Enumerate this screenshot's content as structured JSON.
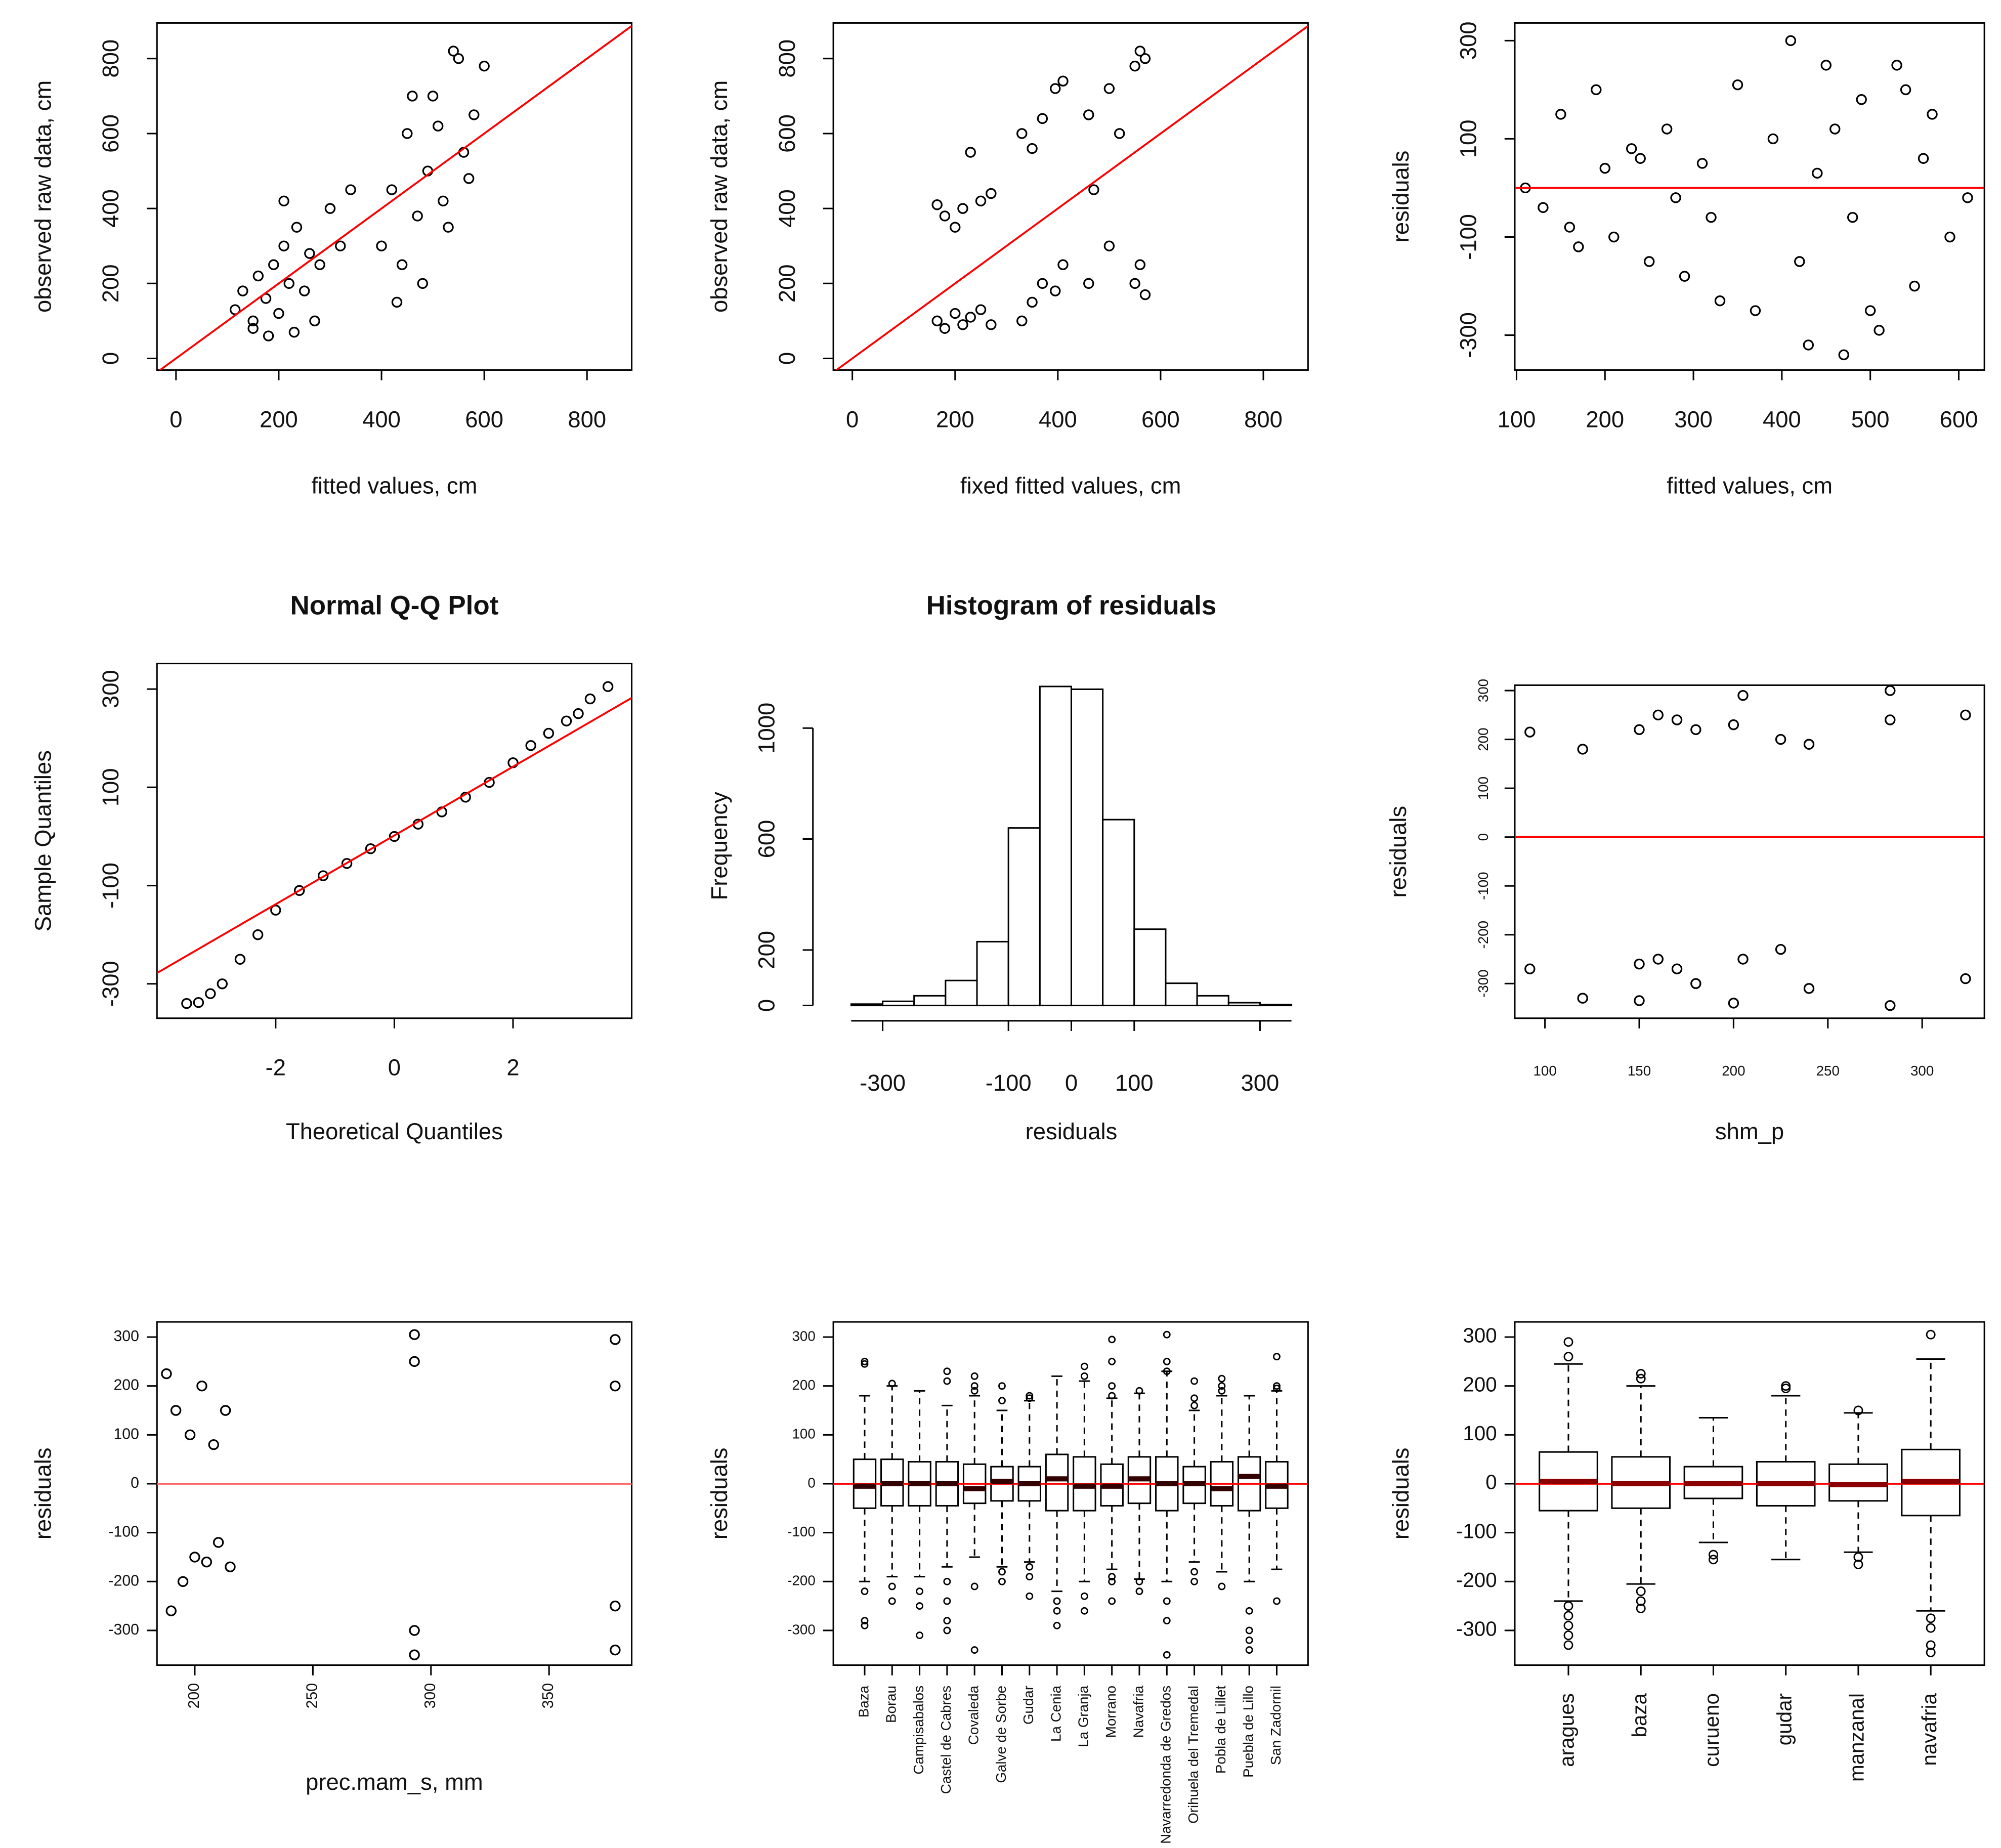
{
  "chart_data": [
    {
      "type": "scatter",
      "xlabel": "fitted values, cm",
      "ylabel": "observed raw data, cm",
      "color": "#000000",
      "x": [
        115,
        130,
        150,
        160,
        175,
        190,
        200,
        210,
        220,
        235,
        250,
        260,
        280,
        300,
        320,
        340,
        150,
        180,
        230,
        270,
        210,
        400,
        420,
        440,
        450,
        470,
        490,
        500,
        520,
        540,
        560,
        580,
        600,
        430,
        480,
        530,
        570,
        460,
        510,
        550
      ],
      "values": [
        130,
        180,
        100,
        220,
        160,
        250,
        120,
        300,
        200,
        350,
        180,
        280,
        250,
        400,
        300,
        450,
        80,
        60,
        70,
        100,
        420,
        300,
        450,
        250,
        600,
        380,
        500,
        700,
        420,
        820,
        550,
        650,
        780,
        150,
        200,
        350,
        480,
        700,
        620,
        800
      ],
      "xlim": [
        -37,
        887
      ],
      "ylim": [
        -31,
        895
      ],
      "xticks": [
        0,
        200,
        400,
        600,
        800
      ],
      "yticks": [
        0,
        200,
        400,
        600,
        800
      ],
      "reference_line": {
        "intercept": 0,
        "slope": 1,
        "color": "#ff0000"
      }
    },
    {
      "type": "scatter",
      "xlabel": "fixed fitted values, cm",
      "ylabel": "observed raw data, cm",
      "color": "#000000",
      "x": [
        165,
        165,
        180,
        180,
        200,
        200,
        215,
        215,
        230,
        230,
        250,
        250,
        270,
        270,
        330,
        330,
        350,
        350,
        370,
        370,
        395,
        395,
        410,
        410,
        460,
        460,
        470,
        500,
        500,
        520,
        550,
        550,
        560,
        560,
        570,
        570
      ],
      "values": [
        100,
        410,
        80,
        380,
        120,
        350,
        90,
        400,
        110,
        550,
        130,
        420,
        90,
        440,
        100,
        600,
        150,
        560,
        200,
        640,
        180,
        720,
        250,
        740,
        200,
        650,
        450,
        300,
        720,
        600,
        200,
        780,
        250,
        820,
        170,
        800
      ],
      "xlim": [
        -37,
        887
      ],
      "ylim": [
        -31,
        895
      ],
      "xticks": [
        0,
        200,
        400,
        600,
        800
      ],
      "yticks": [
        0,
        200,
        400,
        600,
        800
      ],
      "reference_line": {
        "intercept": 0,
        "slope": 1,
        "color": "#ff0000"
      }
    },
    {
      "type": "scatter",
      "xlabel": "fitted values, cm",
      "ylabel": "residuals",
      "color": "#000000",
      "x": [
        110,
        130,
        150,
        170,
        190,
        210,
        230,
        250,
        270,
        290,
        310,
        330,
        350,
        370,
        390,
        410,
        430,
        450,
        470,
        490,
        510,
        530,
        550,
        570,
        590,
        610,
        160,
        240,
        320,
        420,
        460,
        500,
        540,
        200,
        280,
        440,
        480,
        560
      ],
      "values": [
        0,
        -40,
        150,
        -120,
        200,
        -100,
        80,
        -150,
        120,
        -180,
        50,
        -230,
        210,
        -250,
        100,
        300,
        -320,
        250,
        -340,
        180,
        -290,
        250,
        -200,
        150,
        -100,
        -20,
        -80,
        60,
        -60,
        -150,
        120,
        -250,
        200,
        40,
        -20,
        30,
        -60,
        60
      ],
      "xlim": [
        98,
        629
      ],
      "ylim": [
        -371,
        336
      ],
      "xticks": [
        100,
        200,
        300,
        400,
        500,
        600
      ],
      "yticks": [
        -300,
        -100,
        100,
        300
      ],
      "reference_line": {
        "intercept": 0,
        "slope": 0,
        "color": "#ff0000"
      }
    },
    {
      "type": "scatter",
      "title": "Normal Q-Q Plot",
      "xlabel": "Theoretical Quantiles",
      "ylabel": "Sample Quantiles",
      "color": "#000000",
      "x": [
        -3.5,
        -3.3,
        -3.1,
        -2.9,
        -2.6,
        -2.3,
        -2.0,
        -1.6,
        -1.2,
        -0.8,
        -0.4,
        0,
        0.4,
        0.8,
        1.2,
        1.6,
        2.0,
        2.3,
        2.6,
        2.9,
        3.1,
        3.3,
        3.6
      ],
      "values": [
        -340,
        -338,
        -320,
        -300,
        -250,
        -200,
        -150,
        -110,
        -80,
        -55,
        -25,
        0,
        25,
        50,
        80,
        110,
        150,
        185,
        210,
        235,
        250,
        280,
        305
      ],
      "xlim": [
        -4,
        4
      ],
      "ylim": [
        -370,
        352
      ],
      "xticks": [
        -2,
        0,
        2
      ],
      "yticks": [
        -300,
        -100,
        100,
        300
      ],
      "reference_line": {
        "intercept": 2,
        "slope": 70,
        "color": "#ff0000"
      }
    },
    {
      "type": "histogram",
      "title": "Histogram of residuals",
      "xlabel": "residuals",
      "ylabel": "Frequency",
      "color": "#ffffff",
      "bins": [
        -350,
        -300,
        -250,
        -200,
        -150,
        -100,
        -50,
        0,
        50,
        100,
        150,
        200,
        250,
        300,
        350
      ],
      "values": [
        5,
        15,
        35,
        90,
        230,
        640,
        1150,
        1140,
        670,
        275,
        80,
        35,
        10,
        3
      ],
      "xlim": [
        -350,
        350
      ],
      "ylim": [
        0,
        1150
      ],
      "xticks": [
        -300,
        -100,
        0,
        100,
        300
      ],
      "yticks": [
        0,
        200,
        600,
        1000
      ]
    },
    {
      "type": "scatter",
      "xlabel": "shm_p",
      "ylabel": "residuals",
      "color": "#000000",
      "x": [
        92,
        92,
        120,
        120,
        150,
        150,
        150,
        160,
        160,
        170,
        170,
        180,
        180,
        200,
        200,
        205,
        205,
        225,
        225,
        240,
        240,
        283,
        283,
        283,
        323,
        323
      ],
      "values": [
        215,
        -270,
        180,
        -330,
        220,
        -335,
        -260,
        250,
        -250,
        240,
        -270,
        220,
        -300,
        230,
        -340,
        290,
        -250,
        200,
        -230,
        190,
        -310,
        300,
        -345,
        240,
        250,
        -290
      ],
      "xlim": [
        84,
        333
      ],
      "ylim": [
        -371,
        311
      ],
      "xticks": [
        100,
        150,
        200,
        250,
        300
      ],
      "yticks": [
        -300,
        -200,
        -100,
        0,
        100,
        200,
        300
      ],
      "reference_line": {
        "intercept": 0,
        "slope": 0,
        "color": "#ff0000"
      }
    },
    {
      "type": "scatter",
      "xlabel": "prec.mam_s, mm",
      "ylabel": "residuals",
      "color": "#000000",
      "x": [
        188,
        190,
        192,
        195,
        198,
        200,
        203,
        205,
        208,
        210,
        213,
        215,
        293,
        293,
        293,
        293,
        378,
        378,
        378,
        378
      ],
      "values": [
        225,
        -260,
        150,
        -200,
        100,
        -150,
        200,
        -160,
        80,
        -120,
        150,
        -170,
        305,
        -350,
        250,
        -300,
        295,
        -340,
        200,
        -250
      ],
      "xlim": [
        184,
        385
      ],
      "ylim": [
        -371,
        331
      ],
      "xticks": [
        200,
        250,
        300,
        350
      ],
      "yticks": [
        -300,
        -200,
        -100,
        0,
        100,
        200,
        300
      ],
      "reference_line": {
        "intercept": 0,
        "slope": 0,
        "color": "#ff6666"
      }
    },
    {
      "type": "box",
      "ylabel": "residuals",
      "color": "#000000",
      "median_color": "#330000",
      "categories": [
        "Baza",
        "Borau",
        "Campisabalos",
        "Castel de Cabres",
        "Covaleda",
        "Galve de Sorbe",
        "Gudar",
        "La Cenia",
        "La Granja",
        "Morrano",
        "Navafria",
        "Navarredonda de Gredos",
        "Orihuela del Tremedal",
        "Pobla de Lillet",
        "Puebla de Lillo",
        "San Zadornil"
      ],
      "q1": [
        -50,
        -45,
        -45,
        -45,
        -40,
        -35,
        -35,
        -55,
        -55,
        -45,
        -40,
        -55,
        -40,
        -45,
        -55,
        -50
      ],
      "median": [
        -5,
        0,
        0,
        0,
        -10,
        5,
        0,
        10,
        -5,
        -5,
        10,
        0,
        0,
        -10,
        15,
        -5
      ],
      "q3": [
        50,
        50,
        45,
        45,
        40,
        35,
        35,
        60,
        55,
        40,
        55,
        55,
        35,
        45,
        55,
        45
      ],
      "whisker_low": [
        -200,
        -190,
        -190,
        -170,
        -150,
        -170,
        -160,
        -220,
        -200,
        -175,
        -195,
        -200,
        -160,
        -180,
        -200,
        -175
      ],
      "whisker_high": [
        180,
        200,
        190,
        160,
        180,
        150,
        170,
        220,
        210,
        175,
        185,
        230,
        150,
        180,
        180,
        190
      ],
      "outliers": [
        [
          -220,
          -280,
          -290,
          250,
          245
        ],
        [
          -210,
          -240,
          205
        ],
        [
          -220,
          -250,
          -310
        ],
        [
          -200,
          -240,
          -280,
          -300,
          210,
          230
        ],
        [
          -210,
          -340,
          200,
          220,
          190
        ],
        [
          -180,
          -200,
          200,
          170
        ],
        [
          -170,
          -190,
          -230,
          175,
          180
        ],
        [
          -240,
          -260,
          -290
        ],
        [
          -230,
          -260,
          220,
          240
        ],
        [
          -190,
          -200,
          -240,
          180,
          200,
          250,
          295
        ],
        [
          -200,
          -220,
          190
        ],
        [
          -240,
          -280,
          -350,
          250,
          305,
          230
        ],
        [
          -180,
          -200,
          160,
          175,
          210
        ],
        [
          -210,
          190,
          200,
          215
        ],
        [
          -260,
          -300,
          -340,
          -320
        ],
        [
          -240,
          200,
          260,
          195
        ]
      ],
      "ylim": [
        -371,
        331
      ],
      "yticks": [
        -300,
        -200,
        -100,
        0,
        100,
        200,
        300
      ],
      "reference_line": {
        "intercept": 0,
        "slope": 0,
        "color": "#ff0000"
      }
    },
    {
      "type": "box",
      "ylabel": "residuals",
      "color": "#000000",
      "median_color": "#8b0000",
      "categories": [
        "aragues",
        "baza",
        "curueno",
        "gudar",
        "manzanal",
        "navafria"
      ],
      "q1": [
        -55,
        -50,
        -30,
        -45,
        -35,
        -65
      ],
      "median": [
        5,
        0,
        0,
        0,
        -2,
        5
      ],
      "q3": [
        65,
        55,
        35,
        45,
        40,
        70
      ],
      "whisker_low": [
        -240,
        -205,
        -120,
        -155,
        -140,
        -260
      ],
      "whisker_high": [
        245,
        200,
        135,
        180,
        145,
        255
      ],
      "outliers": [
        [
          -250,
          -270,
          -290,
          -310,
          -330,
          260,
          290
        ],
        [
          -220,
          -240,
          -255,
          215,
          225
        ],
        [
          -145,
          -155
        ],
        [
          195,
          200
        ],
        [
          -150,
          -165,
          150
        ],
        [
          -275,
          -295,
          -330,
          -345,
          305
        ]
      ],
      "ylim": [
        -371,
        331
      ],
      "yticks": [
        -300,
        -200,
        -100,
        0,
        100,
        200,
        300
      ],
      "reference_line": {
        "intercept": 0,
        "slope": 0,
        "color": "#ff0000"
      }
    }
  ]
}
